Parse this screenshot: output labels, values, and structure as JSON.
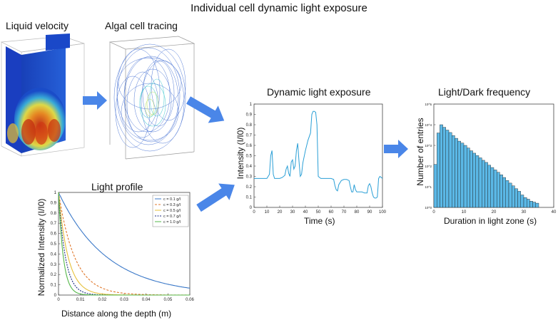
{
  "title": "Individual cell dynamic light exposure",
  "panels": {
    "liquid_velocity": "Liquid velocity",
    "algal_cell_tracing": "Algal cell tracing",
    "dynamic_light_exposure": "Dynamic light exposure",
    "light_dark_frequency": "Light/Dark frequency",
    "light_profile": "Light profile"
  },
  "colors": {
    "arrow": "#4a86e8",
    "trace": "#2a9fd6",
    "bar": "#5bb8e6"
  },
  "chart_data": [
    {
      "type": "line",
      "title": "Dynamic light exposure",
      "xlabel": "Time (s)",
      "ylabel": "Intensity (I/I0)",
      "xlim": [
        0,
        100
      ],
      "ylim": [
        0,
        1
      ],
      "xticks": [
        "0",
        "10",
        "20",
        "30",
        "40",
        "50",
        "60",
        "70",
        "80",
        "90",
        "100"
      ],
      "yticks": [
        "0",
        "0.1",
        "0.2",
        "0.3",
        "0.4",
        "0.5",
        "0.6",
        "0.7",
        "0.8",
        "0.9",
        "1"
      ],
      "x": [
        0,
        5,
        10,
        12,
        13,
        14,
        15,
        16,
        18,
        20,
        22,
        24,
        25,
        26,
        27,
        28,
        29,
        30,
        31,
        32,
        33,
        34,
        35,
        36,
        37,
        38,
        40,
        42,
        44,
        45,
        46,
        47,
        48,
        49,
        50,
        52,
        55,
        58,
        60,
        62,
        63,
        64,
        65,
        66,
        68,
        70,
        72,
        74,
        75,
        76,
        77,
        78,
        79,
        80,
        82,
        84,
        86,
        88,
        89,
        90,
        91,
        92,
        93,
        94,
        95,
        96,
        97,
        98,
        100
      ],
      "y": [
        0.28,
        0.28,
        0.28,
        0.32,
        0.5,
        0.55,
        0.32,
        0.28,
        0.28,
        0.28,
        0.29,
        0.31,
        0.37,
        0.4,
        0.33,
        0.3,
        0.44,
        0.46,
        0.37,
        0.4,
        0.55,
        0.62,
        0.45,
        0.3,
        0.32,
        0.43,
        0.55,
        0.65,
        0.72,
        0.9,
        0.93,
        0.93,
        0.92,
        0.8,
        0.3,
        0.28,
        0.28,
        0.28,
        0.28,
        0.27,
        0.21,
        0.17,
        0.16,
        0.22,
        0.26,
        0.27,
        0.27,
        0.26,
        0.2,
        0.15,
        0.15,
        0.22,
        0.17,
        0.15,
        0.15,
        0.15,
        0.14,
        0.14,
        0.21,
        0.23,
        0.2,
        0.14,
        0.1,
        0.09,
        0.09,
        0.1,
        0.28,
        0.3,
        0.28
      ],
      "grid": false
    },
    {
      "type": "bar",
      "title": "Light/Dark frequency",
      "xlabel": "Duration in light zone (s)",
      "ylabel": "Number of entries",
      "xlim": [
        0,
        40
      ],
      "yscale": "log",
      "ylim": [
        1,
        100000
      ],
      "xticks": [
        "0",
        "10",
        "20",
        "30",
        "40"
      ],
      "yticks": [
        "10^0",
        "10^1",
        "10^2",
        "10^3",
        "10^4",
        "10^5"
      ],
      "bin_width": 1,
      "values": [
        120,
        4000,
        10000,
        7500,
        5500,
        4200,
        3000,
        2200,
        1600,
        1300,
        1000,
        750,
        550,
        420,
        320,
        250,
        190,
        150,
        110,
        85,
        65,
        50,
        38,
        28,
        20,
        15,
        11,
        8,
        6,
        4,
        3,
        2.5,
        2,
        1.8,
        1.6,
        0,
        0,
        0,
        0,
        0
      ],
      "grid": false
    },
    {
      "type": "line",
      "title": "Light profile",
      "xlabel": "Distance along the depth (m)",
      "ylabel": "Normalized Intensity (I/I0)",
      "xlim": [
        0,
        0.06
      ],
      "ylim": [
        0,
        1
      ],
      "xticks": [
        "0",
        "0.01",
        "0.02",
        "0.03",
        "0.04",
        "0.05",
        "0.06"
      ],
      "yticks": [
        "0",
        "0.1",
        "0.2",
        "0.3",
        "0.4",
        "0.5",
        "0.6",
        "0.7",
        "0.8",
        "0.9",
        "1"
      ],
      "series": [
        {
          "name": "c = 0.1 g/l",
          "color": "#3a78c8",
          "dash": "",
          "decay": 45
        },
        {
          "name": "c = 0.3 g/l",
          "color": "#e0782c",
          "dash": "3,2",
          "decay": 135
        },
        {
          "name": "c = 0.5 g/l",
          "color": "#e6c03a",
          "dash": "",
          "decay": 225
        },
        {
          "name": "c = 0.7 g/l",
          "color": "#1a2a80",
          "dash": "2,1.5",
          "decay": 315
        },
        {
          "name": "c = 1.0 g/l",
          "color": "#55b84a",
          "dash": "",
          "decay": 450
        }
      ],
      "legend": "top-right",
      "grid": false
    }
  ]
}
